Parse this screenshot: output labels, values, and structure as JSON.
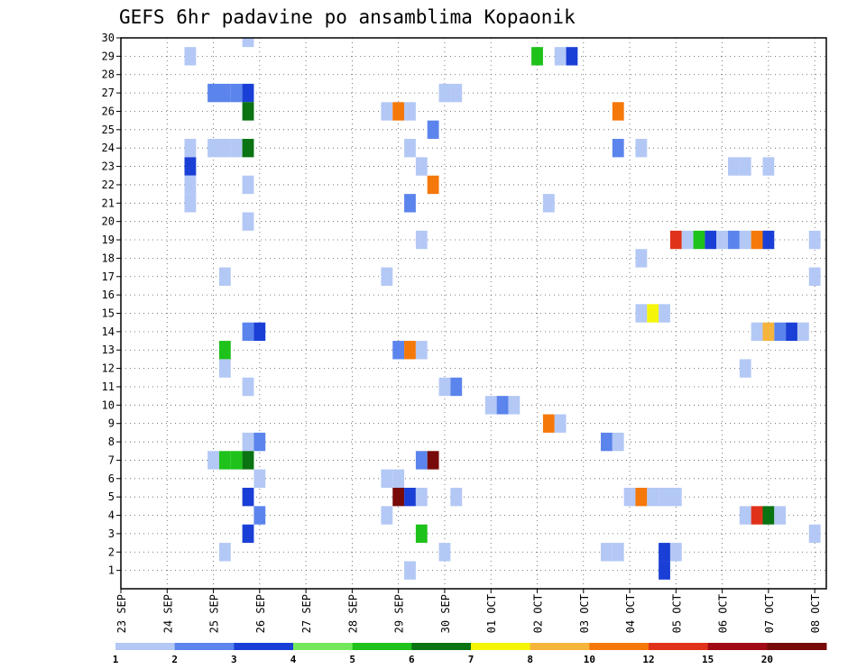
{
  "chart_data": {
    "type": "heatmap",
    "title": "GEFS 6hr padavine po ansamblima Kopaonik",
    "xlabel": "",
    "ylabel": "",
    "x_tick_labels": [
      "23 SEP",
      "24 SEP",
      "25 SEP",
      "26 SEP",
      "27 SEP",
      "28 SEP",
      "29 SEP",
      "30 SEP",
      "01 OCT",
      "02 OCT",
      "03 OCT",
      "04 OCT",
      "05 OCT",
      "06 OCT",
      "07 OCT",
      "08 OCT"
    ],
    "y_tick_labels": [
      "1",
      "2",
      "3",
      "4",
      "5",
      "6",
      "7",
      "8",
      "9",
      "10",
      "11",
      "12",
      "13",
      "14",
      "15",
      "16",
      "17",
      "18",
      "19",
      "20",
      "21",
      "22",
      "23",
      "24",
      "25",
      "26",
      "27",
      "28",
      "29",
      "30"
    ],
    "x_unit": "days from 23 SEP 00Z",
    "xlim": [
      0,
      15.25
    ],
    "ylim": [
      0,
      30
    ],
    "grid": true,
    "colorbar": {
      "labels": [
        "1",
        "2",
        "3",
        "4",
        "5",
        "6",
        "7",
        "8",
        "10",
        "12",
        "15",
        "20"
      ],
      "colors": [
        "#b3c8f5",
        "#5b84ec",
        "#1a3fd6",
        "#74e85a",
        "#1ec21a",
        "#0a7312",
        "#f5f50a",
        "#f5b43c",
        "#f5780a",
        "#e0321a",
        "#a00a14",
        "#780a0a"
      ]
    },
    "cells": [
      {
        "x": 2.75,
        "y": 30,
        "v": 1
      },
      {
        "x": 1.5,
        "y": 29,
        "v": 1
      },
      {
        "x": 9.0,
        "y": 29,
        "v": 5
      },
      {
        "x": 9.5,
        "y": 29,
        "v": 1
      },
      {
        "x": 9.75,
        "y": 29,
        "v": 3
      },
      {
        "x": 2.0,
        "y": 27,
        "v": 2
      },
      {
        "x": 2.25,
        "y": 27,
        "v": 2
      },
      {
        "x": 2.5,
        "y": 27,
        "v": 2
      },
      {
        "x": 2.75,
        "y": 27,
        "v": 3
      },
      {
        "x": 7.0,
        "y": 27,
        "v": 1
      },
      {
        "x": 7.25,
        "y": 27,
        "v": 1
      },
      {
        "x": 2.75,
        "y": 26,
        "v": 6
      },
      {
        "x": 5.75,
        "y": 26,
        "v": 1
      },
      {
        "x": 6.0,
        "y": 26,
        "v": 10
      },
      {
        "x": 6.25,
        "y": 26,
        "v": 1
      },
      {
        "x": 10.75,
        "y": 26,
        "v": 10
      },
      {
        "x": 6.75,
        "y": 25,
        "v": 2
      },
      {
        "x": 1.5,
        "y": 24,
        "v": 1
      },
      {
        "x": 2.0,
        "y": 24,
        "v": 1
      },
      {
        "x": 2.25,
        "y": 24,
        "v": 1
      },
      {
        "x": 2.5,
        "y": 24,
        "v": 1
      },
      {
        "x": 2.75,
        "y": 24,
        "v": 6
      },
      {
        "x": 6.25,
        "y": 24,
        "v": 1
      },
      {
        "x": 10.75,
        "y": 24,
        "v": 2
      },
      {
        "x": 11.25,
        "y": 24,
        "v": 1
      },
      {
        "x": 1.5,
        "y": 23,
        "v": 3
      },
      {
        "x": 6.5,
        "y": 23,
        "v": 1
      },
      {
        "x": 13.25,
        "y": 23,
        "v": 1
      },
      {
        "x": 13.5,
        "y": 23,
        "v": 1
      },
      {
        "x": 14.0,
        "y": 23,
        "v": 1
      },
      {
        "x": 1.5,
        "y": 22,
        "v": 1
      },
      {
        "x": 2.75,
        "y": 22,
        "v": 1
      },
      {
        "x": 6.75,
        "y": 22,
        "v": 10
      },
      {
        "x": 1.5,
        "y": 21,
        "v": 1
      },
      {
        "x": 6.25,
        "y": 21,
        "v": 2
      },
      {
        "x": 9.25,
        "y": 21,
        "v": 1
      },
      {
        "x": 2.75,
        "y": 20,
        "v": 1
      },
      {
        "x": 6.5,
        "y": 19,
        "v": 1
      },
      {
        "x": 12.0,
        "y": 19,
        "v": 12
      },
      {
        "x": 12.25,
        "y": 19,
        "v": 1
      },
      {
        "x": 12.5,
        "y": 19,
        "v": 5
      },
      {
        "x": 12.75,
        "y": 19,
        "v": 3
      },
      {
        "x": 13.0,
        "y": 19,
        "v": 1
      },
      {
        "x": 13.25,
        "y": 19,
        "v": 2
      },
      {
        "x": 13.5,
        "y": 19,
        "v": 1
      },
      {
        "x": 13.75,
        "y": 19,
        "v": 10
      },
      {
        "x": 14.0,
        "y": 19,
        "v": 3
      },
      {
        "x": 15.0,
        "y": 19,
        "v": 1
      },
      {
        "x": 11.25,
        "y": 18,
        "v": 1
      },
      {
        "x": 2.25,
        "y": 17,
        "v": 1
      },
      {
        "x": 5.75,
        "y": 17,
        "v": 1
      },
      {
        "x": 15.0,
        "y": 17,
        "v": 1
      },
      {
        "x": 11.25,
        "y": 15,
        "v": 1
      },
      {
        "x": 11.5,
        "y": 15,
        "v": 7
      },
      {
        "x": 11.75,
        "y": 15,
        "v": 1
      },
      {
        "x": 2.75,
        "y": 14,
        "v": 2
      },
      {
        "x": 3.0,
        "y": 14,
        "v": 3
      },
      {
        "x": 13.75,
        "y": 14,
        "v": 1
      },
      {
        "x": 14.0,
        "y": 14,
        "v": 8
      },
      {
        "x": 14.25,
        "y": 14,
        "v": 2
      },
      {
        "x": 14.5,
        "y": 14,
        "v": 3
      },
      {
        "x": 14.75,
        "y": 14,
        "v": 1
      },
      {
        "x": 2.25,
        "y": 13,
        "v": 5
      },
      {
        "x": 6.0,
        "y": 13,
        "v": 2
      },
      {
        "x": 6.25,
        "y": 13,
        "v": 10
      },
      {
        "x": 6.5,
        "y": 13,
        "v": 1
      },
      {
        "x": 2.25,
        "y": 12,
        "v": 1
      },
      {
        "x": 13.5,
        "y": 12,
        "v": 1
      },
      {
        "x": 2.75,
        "y": 11,
        "v": 1
      },
      {
        "x": 7.0,
        "y": 11,
        "v": 1
      },
      {
        "x": 7.25,
        "y": 11,
        "v": 2
      },
      {
        "x": 8.0,
        "y": 10,
        "v": 1
      },
      {
        "x": 8.25,
        "y": 10,
        "v": 2
      },
      {
        "x": 8.5,
        "y": 10,
        "v": 1
      },
      {
        "x": 9.25,
        "y": 9,
        "v": 10
      },
      {
        "x": 9.5,
        "y": 9,
        "v": 1
      },
      {
        "x": 2.75,
        "y": 8,
        "v": 1
      },
      {
        "x": 3.0,
        "y": 8,
        "v": 2
      },
      {
        "x": 10.5,
        "y": 8,
        "v": 2
      },
      {
        "x": 10.75,
        "y": 8,
        "v": 1
      },
      {
        "x": 2.0,
        "y": 7,
        "v": 1
      },
      {
        "x": 2.25,
        "y": 7,
        "v": 5
      },
      {
        "x": 2.5,
        "y": 7,
        "v": 5
      },
      {
        "x": 2.75,
        "y": 7,
        "v": 6
      },
      {
        "x": 6.5,
        "y": 7,
        "v": 2
      },
      {
        "x": 6.75,
        "y": 7,
        "v": 20
      },
      {
        "x": 3.0,
        "y": 6,
        "v": 1
      },
      {
        "x": 5.75,
        "y": 6,
        "v": 1
      },
      {
        "x": 6.0,
        "y": 6,
        "v": 1
      },
      {
        "x": 2.75,
        "y": 5,
        "v": 3
      },
      {
        "x": 6.0,
        "y": 5,
        "v": 20
      },
      {
        "x": 6.25,
        "y": 5,
        "v": 3
      },
      {
        "x": 6.5,
        "y": 5,
        "v": 1
      },
      {
        "x": 7.25,
        "y": 5,
        "v": 1
      },
      {
        "x": 11.0,
        "y": 5,
        "v": 1
      },
      {
        "x": 11.25,
        "y": 5,
        "v": 10
      },
      {
        "x": 11.5,
        "y": 5,
        "v": 1
      },
      {
        "x": 11.75,
        "y": 5,
        "v": 1
      },
      {
        "x": 12.0,
        "y": 5,
        "v": 1
      },
      {
        "x": 3.0,
        "y": 4,
        "v": 2
      },
      {
        "x": 5.75,
        "y": 4,
        "v": 1
      },
      {
        "x": 13.5,
        "y": 4,
        "v": 1
      },
      {
        "x": 13.75,
        "y": 4,
        "v": 12
      },
      {
        "x": 14.0,
        "y": 4,
        "v": 6
      },
      {
        "x": 14.25,
        "y": 4,
        "v": 1
      },
      {
        "x": 2.75,
        "y": 3,
        "v": 3
      },
      {
        "x": 6.5,
        "y": 3,
        "v": 5
      },
      {
        "x": 15.0,
        "y": 3,
        "v": 1
      },
      {
        "x": 2.25,
        "y": 2,
        "v": 1
      },
      {
        "x": 7.0,
        "y": 2,
        "v": 1
      },
      {
        "x": 10.5,
        "y": 2,
        "v": 1
      },
      {
        "x": 10.75,
        "y": 2,
        "v": 1
      },
      {
        "x": 11.75,
        "y": 2,
        "v": 3
      },
      {
        "x": 12.0,
        "y": 2,
        "v": 1
      },
      {
        "x": 6.25,
        "y": 1,
        "v": 1
      },
      {
        "x": 11.75,
        "y": 1,
        "v": 3
      }
    ]
  }
}
